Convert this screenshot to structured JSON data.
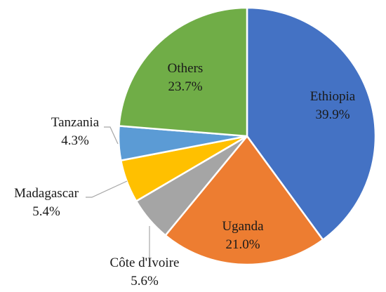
{
  "chart_data": {
    "type": "pie",
    "title": "",
    "start_angle_deg": 0,
    "direction": "clockwise",
    "slices": [
      {
        "label": "Ethiopia",
        "value": 39.9,
        "value_text": "39.9%",
        "color": "#4472C4"
      },
      {
        "label": "Uganda",
        "value": 21.0,
        "value_text": "21.0%",
        "color": "#ED7D31"
      },
      {
        "label": "Côte d'Ivoire",
        "value": 5.6,
        "value_text": "5.6%",
        "color": "#A5A5A5"
      },
      {
        "label": "Madagascar",
        "value": 5.4,
        "value_text": "5.4%",
        "color": "#FFC000"
      },
      {
        "label": "Tanzania",
        "value": 4.3,
        "value_text": "4.3%",
        "color": "#5B9BD5"
      },
      {
        "label": "Others",
        "value": 23.7,
        "value_text": "23.7%",
        "color": "#70AD47"
      }
    ]
  }
}
